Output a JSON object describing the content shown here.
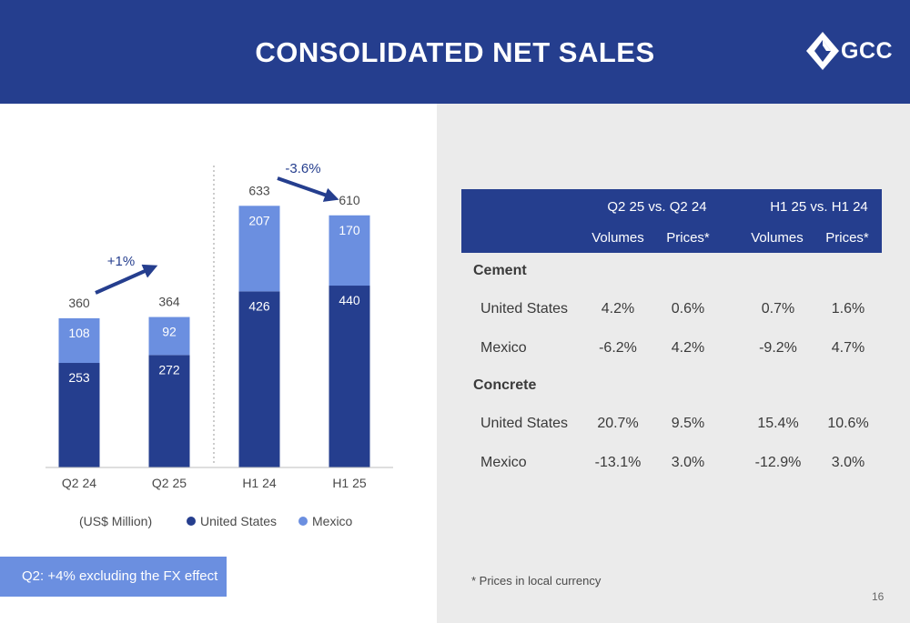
{
  "slide": {
    "title": "CONSOLIDATED NET SALES",
    "logo_text": "GCC",
    "page_number": "16"
  },
  "colors": {
    "header_bg": "#253e8e",
    "united_states": "#253e8e",
    "mexico": "#6b8fe0",
    "note_bg": "#6b8fe0",
    "panel_bg": "#ebebeb"
  },
  "chart_data": {
    "type": "bar",
    "stacked": true,
    "categories": [
      "Q2 24",
      "Q2 25",
      "H1 24",
      "H1 25"
    ],
    "series": [
      {
        "name": "United States",
        "values": [
          253,
          272,
          426,
          440
        ]
      },
      {
        "name": "Mexico",
        "values": [
          108,
          92,
          207,
          170
        ]
      }
    ],
    "totals": [
      360,
      364,
      633,
      610
    ],
    "ylim": [
      0,
      700
    ],
    "unit_label": "(US$ Million)",
    "annotations": [
      {
        "text": "+1%",
        "from": "Q2 24",
        "to": "Q2 25",
        "direction": "up"
      },
      {
        "text": "-3.6%",
        "from": "H1 24",
        "to": "H1 25",
        "direction": "down"
      }
    ],
    "legend": [
      "United States",
      "Mexico"
    ],
    "legend_position": "bottom",
    "grid": false
  },
  "note": "Q2: +4% excluding the FX effect",
  "table": {
    "group_headers": [
      "Q2 25 vs. Q2 24",
      "H1 25 vs. H1 24"
    ],
    "sub_headers": [
      "Volumes",
      "Prices*",
      "Volumes",
      "Prices*"
    ],
    "sections": [
      {
        "name": "Cement",
        "rows": [
          {
            "label": "United States",
            "values": [
              "4.2%",
              "0.6%",
              "0.7%",
              "1.6%"
            ]
          },
          {
            "label": "Mexico",
            "values": [
              "-6.2%",
              "4.2%",
              "-9.2%",
              "4.7%"
            ]
          }
        ]
      },
      {
        "name": "Concrete",
        "rows": [
          {
            "label": "United States",
            "values": [
              "20.7%",
              "9.5%",
              "15.4%",
              "10.6%"
            ]
          },
          {
            "label": "Mexico",
            "values": [
              "-13.1%",
              "3.0%",
              "-12.9%",
              "3.0%"
            ]
          }
        ]
      }
    ]
  },
  "footnote": "* Prices in local currency"
}
